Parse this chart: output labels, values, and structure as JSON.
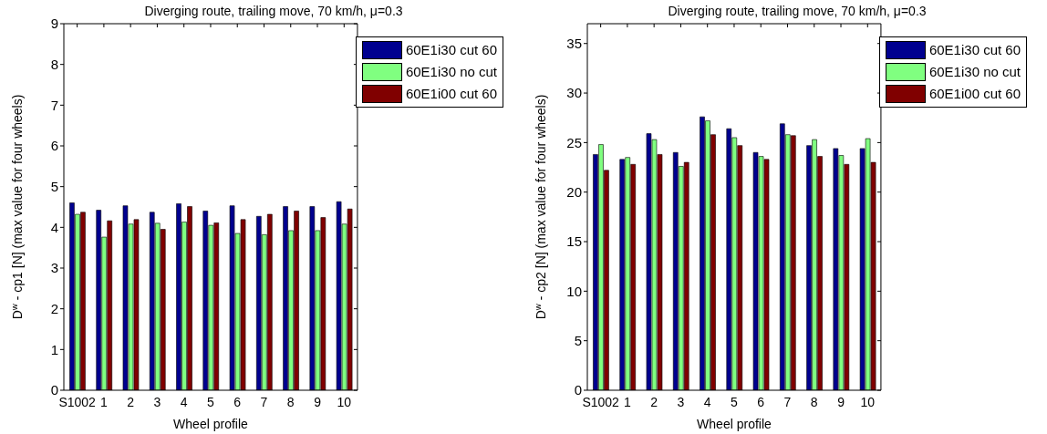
{
  "chart_data": [
    {
      "type": "bar",
      "title": "Diverging route, trailing move, 70 km/h, μ=0.3",
      "xlabel": "Wheel profile",
      "ylabel": "D$^{w}$ - cp1 [N] (max value for four wheels)",
      "categories": [
        "S1002",
        "1",
        "2",
        "3",
        "4",
        "5",
        "6",
        "7",
        "8",
        "9",
        "10"
      ],
      "series": [
        {
          "name": "60E1i30 cut 60",
          "color": "#00008f",
          "values": [
            4.6,
            4.42,
            4.53,
            4.37,
            4.58,
            4.4,
            4.53,
            4.27,
            4.51,
            4.51,
            4.63
          ]
        },
        {
          "name": "60E1i30 no cut",
          "color": "#80ff80",
          "values": [
            4.32,
            3.76,
            4.08,
            4.1,
            4.13,
            4.05,
            3.85,
            3.82,
            3.92,
            3.92,
            4.08
          ]
        },
        {
          "name": "60E1i00 cut 60",
          "color": "#800000",
          "values": [
            4.37,
            4.16,
            4.19,
            3.95,
            4.51,
            4.11,
            4.19,
            4.32,
            4.4,
            4.24,
            4.45
          ]
        }
      ],
      "ylim": [
        0,
        9
      ],
      "yticks": [
        0,
        1,
        2,
        3,
        4,
        5,
        6,
        7,
        8,
        9
      ],
      "grid": false,
      "legend": "top right"
    },
    {
      "type": "bar",
      "title": "Diverging route, trailing move, 70 km/h, μ=0.3",
      "xlabel": "Wheel profile",
      "ylabel": "D$^{w}$ - cp2 [N] (max value for four wheels)",
      "categories": [
        "S1002",
        "1",
        "2",
        "3",
        "4",
        "5",
        "6",
        "7",
        "8",
        "9",
        "10"
      ],
      "series": [
        {
          "name": "60E1i30 cut 60",
          "color": "#00008f",
          "values": [
            23.8,
            23.3,
            25.9,
            24.0,
            27.6,
            26.4,
            24.0,
            26.9,
            24.7,
            24.4,
            24.4
          ]
        },
        {
          "name": "60E1i30 no cut",
          "color": "#80ff80",
          "values": [
            24.8,
            23.5,
            25.3,
            22.6,
            27.2,
            25.5,
            23.6,
            25.8,
            25.3,
            23.7,
            25.4
          ]
        },
        {
          "name": "60E1i00 cut 60",
          "color": "#800000",
          "values": [
            22.2,
            22.8,
            23.8,
            23.0,
            25.8,
            24.7,
            23.3,
            25.7,
            23.6,
            22.8,
            23.0
          ]
        }
      ],
      "ylim": [
        0,
        37
      ],
      "yticks": [
        0,
        5,
        10,
        15,
        20,
        25,
        30,
        35
      ],
      "grid": false,
      "legend": "top right"
    }
  ]
}
